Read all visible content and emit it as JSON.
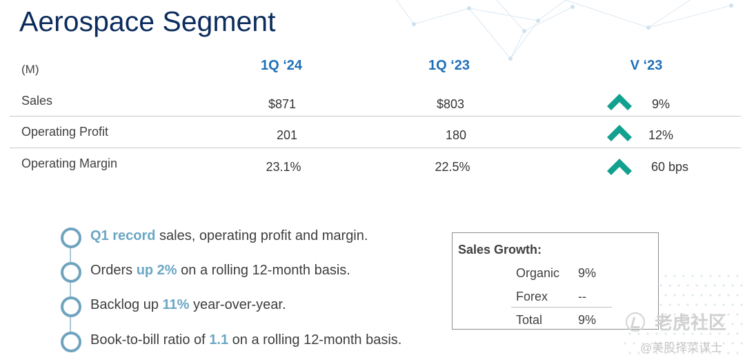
{
  "title": "Aerospace Segment",
  "table": {
    "unit_label": "(M)",
    "columns": [
      "1Q ‘24",
      "1Q ‘23",
      "V ‘23"
    ],
    "rows": [
      {
        "label": "Sales",
        "q1_24": "$871",
        "q1_23": "$803",
        "variance": "9%",
        "direction": "up"
      },
      {
        "label": "Operating Profit",
        "q1_24": "201",
        "q1_23": "180",
        "variance": "12%",
        "direction": "up"
      },
      {
        "label": "Operating Margin",
        "q1_24": "23.1%",
        "q1_23": "22.5%",
        "variance": "60 bps",
        "direction": "up"
      }
    ]
  },
  "bullets": [
    {
      "parts": [
        {
          "text": "Q1 record",
          "hl": true
        },
        {
          "text": " sales, operating profit and margin.",
          "hl": false
        }
      ]
    },
    {
      "parts": [
        {
          "text": "Orders ",
          "hl": false
        },
        {
          "text": "up 2%",
          "hl": true
        },
        {
          "text": " on a rolling 12-month basis.",
          "hl": false
        }
      ]
    },
    {
      "parts": [
        {
          "text": "Backlog up ",
          "hl": false
        },
        {
          "text": "11%",
          "hl": true
        },
        {
          "text": " year-over-year.",
          "hl": false
        }
      ]
    },
    {
      "parts": [
        {
          "text": "Book-to-bill ratio of ",
          "hl": false
        },
        {
          "text": "1.1",
          "hl": true
        },
        {
          "text": " on a rolling 12-month basis.",
          "hl": false
        }
      ]
    }
  ],
  "sales_growth": {
    "title": "Sales Growth:",
    "items": [
      {
        "label": "Organic",
        "value": "9%"
      },
      {
        "label": "Forex",
        "value": "--"
      },
      {
        "label": "Total",
        "value": "9%"
      }
    ]
  },
  "watermark": {
    "brand": "老虎社区",
    "handle": "@美股择菜谋士"
  },
  "colors": {
    "title": "#0b2c5c",
    "column_header": "#1d6fb8",
    "arrow": "#12a08f",
    "highlight": "#6aa7c4",
    "ring": "#6fa3bf"
  },
  "icons": {
    "up_arrow": "chevron-up-icon",
    "bullet": "ring-bullet-icon"
  }
}
